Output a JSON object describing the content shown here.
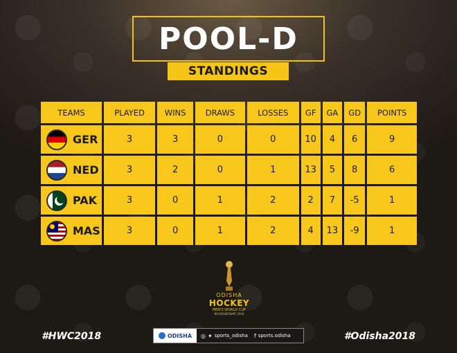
{
  "header": {
    "title": "POOL-D",
    "subtitle": "STANDINGS"
  },
  "table": {
    "columns": [
      "TEAMS",
      "PLAYED",
      "WINS",
      "DRAWS",
      "LOSSES",
      "GF",
      "GA",
      "GD",
      "POINTS"
    ],
    "rows": [
      {
        "team": "GER",
        "flag": "germany-flag",
        "played": "3",
        "wins": "3",
        "draws": "0",
        "losses": "0",
        "gf": "10",
        "ga": "4",
        "gd": "6",
        "points": "9"
      },
      {
        "team": "NED",
        "flag": "netherlands-flag",
        "played": "3",
        "wins": "2",
        "draws": "0",
        "losses": "1",
        "gf": "13",
        "ga": "5",
        "gd": "8",
        "points": "6"
      },
      {
        "team": "PAK",
        "flag": "pakistan-flag",
        "played": "3",
        "wins": "0",
        "draws": "1",
        "losses": "2",
        "gf": "2",
        "ga": "7",
        "gd": "-5",
        "points": "1"
      },
      {
        "team": "MAS",
        "flag": "malaysia-flag",
        "played": "3",
        "wins": "0",
        "draws": "1",
        "losses": "2",
        "gf": "4",
        "ga": "13",
        "gd": "-9",
        "points": "1"
      }
    ]
  },
  "logo": {
    "line1": "ODISHA",
    "line2": "HOCKEY",
    "line3": "MEN'S WORLD CUP",
    "line4": "BHUBANESWAR 2018"
  },
  "footer": {
    "hashtag_left": "#HWC2018",
    "hashtag_right": "#Odisha2018",
    "brand": "ODISHA",
    "twitter_handle": "sports_odisha",
    "facebook_handle": "sports.odisha"
  },
  "colors": {
    "accent": "#f7c81b",
    "background": "#2a241e"
  }
}
